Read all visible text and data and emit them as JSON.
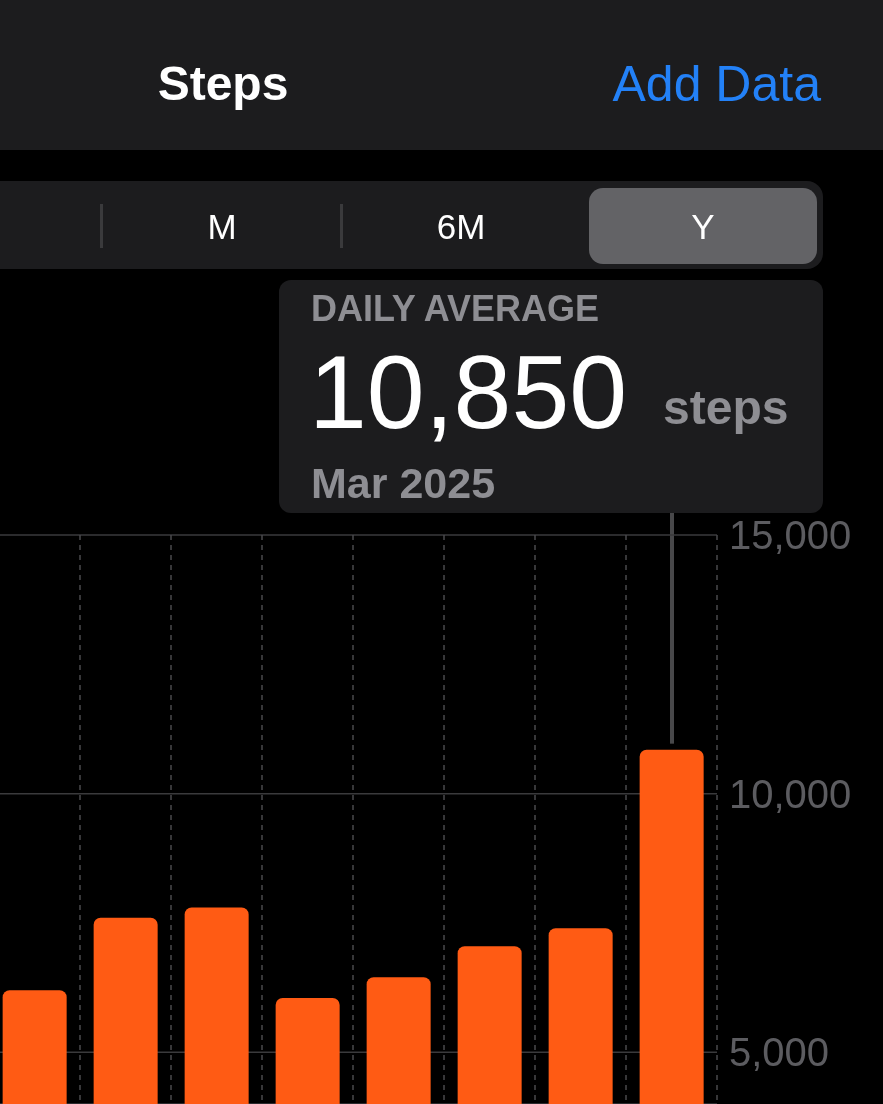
{
  "chart_data": {
    "type": "bar",
    "title": "Steps",
    "categories": [
      null,
      null,
      null,
      null,
      null,
      null,
      null,
      null
    ],
    "values": [
      6200,
      7600,
      7800,
      6050,
      6450,
      7050,
      7400,
      10850
    ],
    "color": "#ff5b14",
    "ylim": [
      4000,
      15000
    ],
    "yticks": [
      {
        "value": 5000,
        "label": "5,000"
      },
      {
        "value": 10000,
        "label": "10,000"
      },
      {
        "value": 15000,
        "label": "15,000"
      }
    ],
    "grid": true,
    "annotations": [
      "Add Data",
      "M",
      "6M",
      "Y",
      "DAILY AVERAGE",
      "10,850",
      "steps",
      "Mar 2025"
    ]
  }
}
